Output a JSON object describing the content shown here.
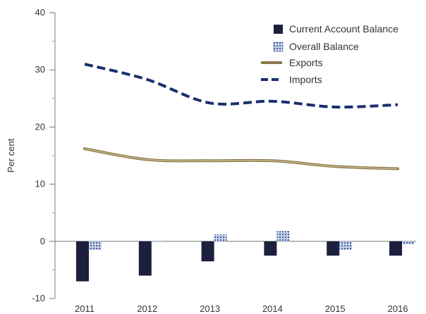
{
  "chart_data": {
    "type": "bar+line",
    "title": "",
    "xlabel": "",
    "ylabel": "Per cent",
    "ylim": [
      -10,
      40
    ],
    "yticks": [
      -10,
      0,
      10,
      20,
      30,
      40
    ],
    "ytick_labels": [
      "-10",
      "0",
      "10",
      "20",
      "30",
      "40"
    ],
    "categories": [
      "2011",
      "2012",
      "2013",
      "2014",
      "2015",
      "2016"
    ],
    "grid": false,
    "legend_position": "top-right",
    "series": [
      {
        "name": "Current Account Balance",
        "type": "bar",
        "color": "#1c1f3d",
        "values": [
          -7.0,
          -6.0,
          -3.5,
          -2.5,
          -2.5,
          -2.5
        ]
      },
      {
        "name": "Overall Balance",
        "type": "bar",
        "pattern": "dotted",
        "color": "#8fa2c8",
        "values": [
          -1.5,
          0.0,
          1.2,
          1.8,
          -1.5,
          -0.5
        ]
      },
      {
        "name": "Exports",
        "type": "line",
        "style": "solid",
        "color": "#8a7a4a",
        "values": [
          16.2,
          14.3,
          14.1,
          14.1,
          13.1,
          12.7
        ]
      },
      {
        "name": "Imports",
        "type": "line",
        "style": "dashed",
        "color": "#1a2f6e",
        "values": [
          31.0,
          28.3,
          24.2,
          24.5,
          23.5,
          23.9
        ]
      }
    ]
  }
}
